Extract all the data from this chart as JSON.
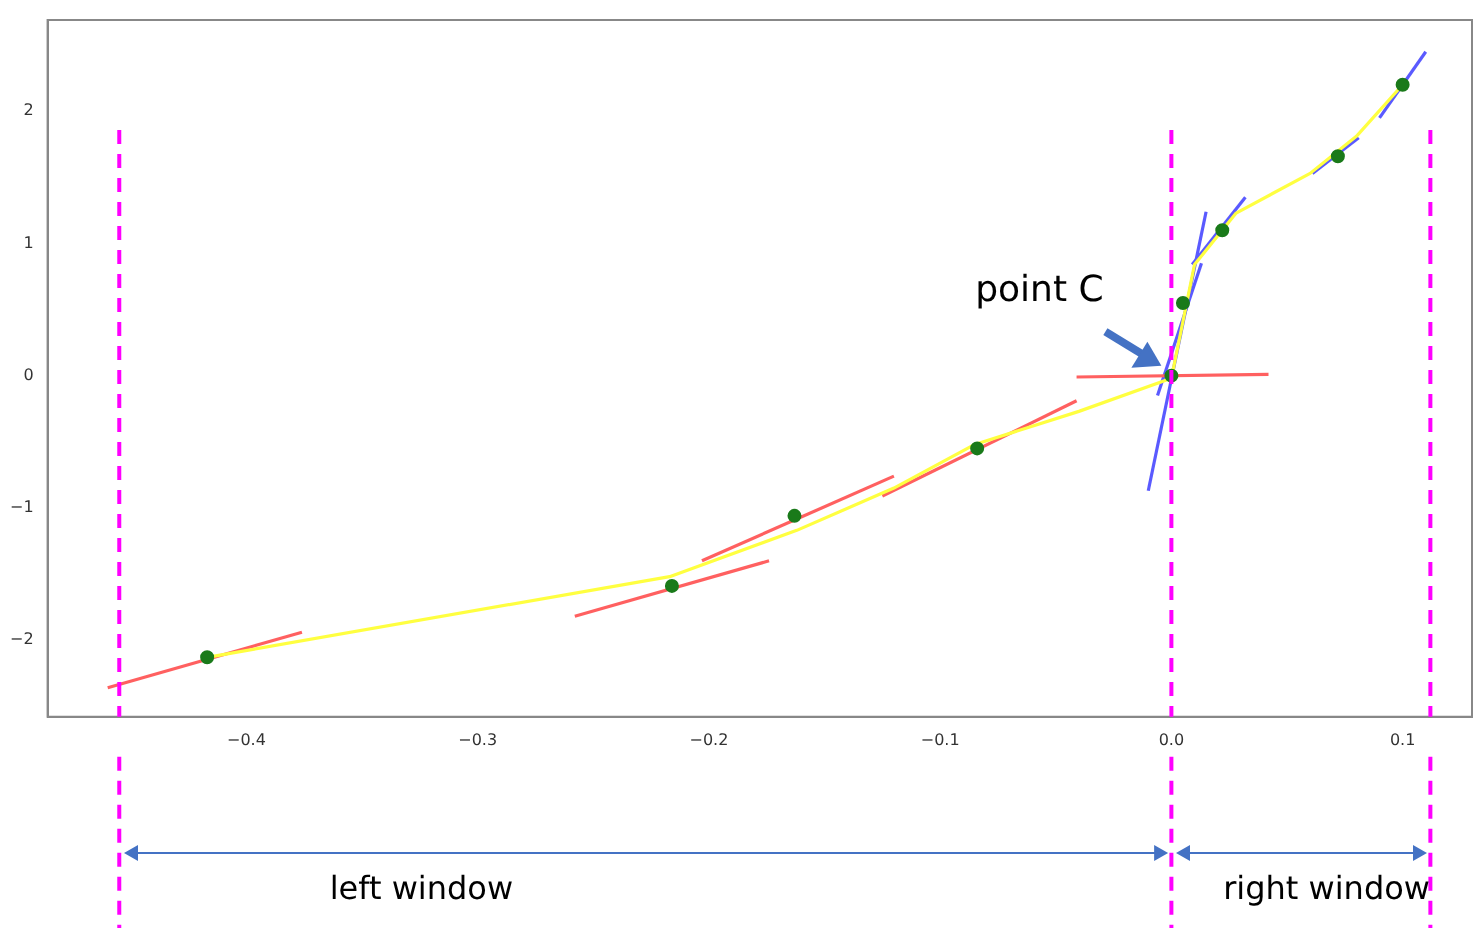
{
  "chart_data": {
    "type": "line",
    "xlim": [
      -0.486,
      0.13
    ],
    "ylim": [
      -2.58,
      2.69
    ],
    "xticks": [
      {
        "value": -0.4,
        "label": "−0.4"
      },
      {
        "value": -0.3,
        "label": "−0.3"
      },
      {
        "value": -0.2,
        "label": "−0.2"
      },
      {
        "value": -0.1,
        "label": "−0.1"
      },
      {
        "value": 0,
        "label": "0.0"
      },
      {
        "value": 0.1,
        "label": "0.1"
      }
    ],
    "yticks": [
      {
        "value": -2,
        "label": "−2"
      },
      {
        "value": -1,
        "label": "−1"
      },
      0,
      1,
      2
    ],
    "grid": false,
    "legend": false,
    "marker": "none",
    "line_style": "solid",
    "series": [
      {
        "color": "#ffff40",
        "x": [
          -0.417,
          -0.217,
          -0.162,
          -0.12,
          -0.085,
          -0.04,
          0,
          0.01,
          0.028,
          0.06,
          0.08,
          0.1
        ],
        "values": [
          -2.13,
          -1.52,
          -1.17,
          -0.85,
          -0.52,
          -0.27,
          -0.02,
          0.84,
          1.23,
          1.53,
          1.81,
          2.2
        ]
      },
      {
        "type": "line",
        "color": "#ff6060",
        "x": [
          -0.46,
          -0.376
        ],
        "values": [
          -2.36,
          -1.94
        ]
      },
      {
        "type": "line",
        "color": "#ff6060",
        "x": [
          -0.258,
          -0.174
        ],
        "values": [
          -1.82,
          -1.4
        ]
      },
      {
        "type": "line",
        "color": "#ff6060",
        "x": [
          -0.203,
          -0.12
        ],
        "values": [
          -1.4,
          -0.76
        ]
      },
      {
        "type": "line",
        "color": "#ff6060",
        "x": [
          -0.125,
          -0.041
        ],
        "values": [
          -0.91,
          -0.19
        ]
      },
      {
        "type": "line",
        "color": "#ff6060",
        "x": [
          -0.041,
          0.042
        ],
        "values": [
          -0.01,
          0.01
        ]
      },
      {
        "type": "line",
        "color": "#5a5aff",
        "x": [
          -0.01,
          0.015
        ],
        "values": [
          -0.87,
          1.24
        ]
      },
      {
        "type": "line",
        "color": "#5a5aff",
        "x": [
          -0.006,
          0.013
        ],
        "values": [
          -0.15,
          0.85
        ]
      },
      {
        "type": "line",
        "color": "#5a5aff",
        "x": [
          0.009,
          0.032
        ],
        "values": [
          0.84,
          1.35
        ]
      },
      {
        "type": "line",
        "color": "#5a5aff",
        "x": [
          0.061,
          0.081
        ],
        "values": [
          1.53,
          1.8
        ]
      },
      {
        "type": "line",
        "color": "#5a5aff",
        "x": [
          0.09,
          0.11
        ],
        "values": [
          1.95,
          2.45
        ]
      },
      {
        "type": "scatter",
        "marker": "circle",
        "color": "#1a7a1a",
        "x": [
          -0.417,
          -0.216,
          -0.163,
          -0.084,
          0,
          0.005,
          0.022,
          0.072,
          0.1
        ],
        "values": [
          -2.13,
          -1.59,
          -1.06,
          -0.55,
          0,
          0.55,
          1.1,
          1.66,
          2.2
        ]
      }
    ],
    "ref_lines": [
      {
        "axis": "x",
        "value": -0.455,
        "color": "#ff00ff",
        "line_style": "dashed"
      },
      {
        "axis": "x",
        "value": 0,
        "color": "#ff00ff",
        "line_style": "dashed"
      },
      {
        "axis": "x",
        "value": 0.112,
        "color": "#ff00ff",
        "line_style": "dashed"
      }
    ],
    "annotations": [
      "left window",
      "right window",
      {
        "text": "point C",
        "x": 0,
        "y": 0
      }
    ]
  }
}
